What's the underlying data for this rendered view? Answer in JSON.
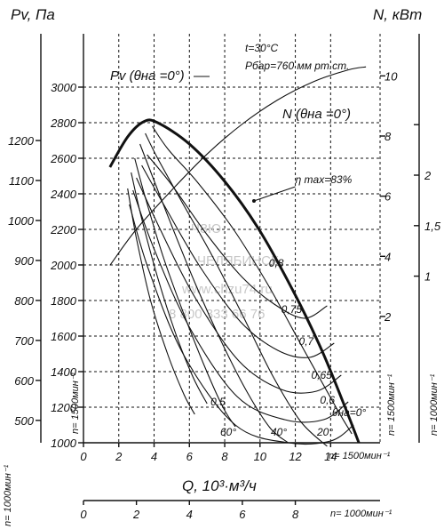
{
  "chart_data": {
    "type": "line",
    "title": "",
    "notes": [
      "t=30°C",
      "Рбар=760 мм рт.ст."
    ],
    "watermark": [
      "ЧЗЮ",
      "ЧЕЛЯБИНСК",
      "www.chzu74.ru",
      "8 800 333 66 76"
    ],
    "axes": {
      "x_main": {
        "label": "Q, 10³·м³/ч",
        "rpm_label": "n= 1500мин⁻¹",
        "ticks": [
          0,
          2,
          4,
          6,
          8,
          10,
          12,
          14
        ],
        "range": [
          0,
          16.8
        ]
      },
      "x_secondary": {
        "rpm_label": "n= 1000мин⁻¹",
        "ticks": [
          0,
          2,
          4,
          6,
          8
        ],
        "range": [
          0,
          11.2
        ]
      },
      "y_pressure_1500": {
        "label": "Pv, Па",
        "rpm_label": "n= 1500мин⁻¹",
        "ticks": [
          1000,
          1200,
          1400,
          1600,
          1800,
          2000,
          2200,
          2400,
          2600,
          2800,
          3000
        ],
        "range": [
          1000,
          3300
        ]
      },
      "y_pressure_1000": {
        "rpm_label": "n= 1000мин⁻¹",
        "ticks": [
          500,
          600,
          700,
          800,
          900,
          1000,
          1100,
          1200
        ],
        "range": [
          444,
          1467
        ]
      },
      "y_power_1500": {
        "label": "N, кВт",
        "ticks": [
          2,
          4,
          6,
          8,
          10
        ],
        "range": [
          -2.2,
          11.4
        ]
      },
      "y_power_1000": {
        "ticks": [
          1,
          1.5,
          2
        ],
        "range": [
          -0.65,
          3.4
        ]
      }
    },
    "grid": true,
    "series": [
      {
        "name": "Pv (θна =0°)",
        "kind": "envelope",
        "x": [
          1.5,
          2.5,
          3.4,
          4.2,
          6.0,
          8.0,
          10.0,
          12.0,
          13.5,
          14.7,
          15.6
        ],
        "y": [
          2550,
          2720,
          2805,
          2800,
          2680,
          2470,
          2190,
          1830,
          1520,
          1230,
          1000
        ]
      },
      {
        "name": "N (θна =0°)",
        "kind": "power",
        "x": [
          1.5,
          3.0,
          5.0,
          7.0,
          9.0,
          11.0,
          13.0,
          15.0,
          16.0
        ],
        "y": [
          3.7,
          4.9,
          6.2,
          7.4,
          8.4,
          9.2,
          9.8,
          10.2,
          10.3
        ]
      },
      {
        "name": "θна=0°",
        "kind": "guide_vane",
        "x": [
          3.9,
          4.8,
          6.5,
          8.5,
          10.5,
          12.5,
          14.3,
          15.2
        ],
        "y": [
          2780,
          2650,
          2460,
          2200,
          1880,
          1520,
          1200,
          1050
        ]
      },
      {
        "name": "20°",
        "kind": "guide_vane",
        "x": [
          3.5,
          4.2,
          5.6,
          7.3,
          9.0,
          10.7,
          12.3,
          13.8
        ],
        "y": [
          2740,
          2600,
          2350,
          2050,
          1720,
          1380,
          1120,
          980
        ]
      },
      {
        "name": "40°",
        "kind": "guide_vane",
        "x": [
          3.2,
          3.9,
          5.0,
          6.4,
          7.9,
          9.3,
          10.6,
          11.6
        ],
        "y": [
          2680,
          2500,
          2220,
          1880,
          1550,
          1280,
          1080,
          1000
        ]
      },
      {
        "name": "60°",
        "kind": "guide_vane",
        "x": [
          2.9,
          3.5,
          4.5,
          5.7,
          6.9,
          7.9,
          8.6
        ],
        "y": [
          2600,
          2380,
          2050,
          1720,
          1420,
          1200,
          1090
        ]
      },
      {
        "name": "",
        "kind": "guide_vane",
        "x": [
          2.7,
          3.3,
          4.2,
          5.2,
          6.2,
          7.0
        ],
        "y": [
          2520,
          2260,
          1930,
          1620,
          1370,
          1220
        ]
      },
      {
        "name": "",
        "kind": "guide_vane",
        "x": [
          2.5,
          3.0,
          3.8,
          4.8,
          5.7,
          6.3
        ],
        "y": [
          2430,
          2150,
          1800,
          1490,
          1270,
          1160
        ]
      }
    ],
    "efficiency_labels": [
      {
        "text": "0,8",
        "x": 10.5,
        "y": 1990
      },
      {
        "text": "0,75",
        "x": 11.2,
        "y": 1730
      },
      {
        "text": "0,7",
        "x": 12.2,
        "y": 1550
      },
      {
        "text": "0,65",
        "x": 12.9,
        "y": 1360
      },
      {
        "text": "0,6",
        "x": 13.4,
        "y": 1220
      },
      {
        "text": "0,5",
        "x": 7.2,
        "y": 1210
      },
      {
        "text": "η max=83%",
        "x": 12.0,
        "y": 2460
      }
    ],
    "efficiency_curves": [
      {
        "x": [
          3.6,
          5.0,
          7.0,
          9.0,
          10.8,
          12.5,
          13.8
        ],
        "y": [
          2620,
          2450,
          2170,
          1930,
          1780,
          1700,
          1770
        ]
      },
      {
        "x": [
          3.3,
          4.6,
          6.6,
          8.9,
          11.0,
          12.8,
          14.2
        ],
        "y": [
          2560,
          2330,
          1990,
          1680,
          1520,
          1480,
          1560
        ]
      },
      {
        "x": [
          3.0,
          4.3,
          6.3,
          8.8,
          11.2,
          13.2,
          14.6
        ],
        "y": [
          2490,
          2210,
          1820,
          1460,
          1300,
          1290,
          1380
        ]
      },
      {
        "x": [
          2.8,
          4.0,
          6.0,
          8.7,
          11.4,
          13.6,
          15.0
        ],
        "y": [
          2420,
          2090,
          1650,
          1260,
          1130,
          1130,
          1230
        ]
      },
      {
        "x": [
          2.6,
          3.7,
          5.7,
          8.6,
          11.6,
          14.0,
          15.3
        ],
        "y": [
          2340,
          1970,
          1490,
          1100,
          1000,
          1010,
          1100
        ]
      }
    ]
  }
}
